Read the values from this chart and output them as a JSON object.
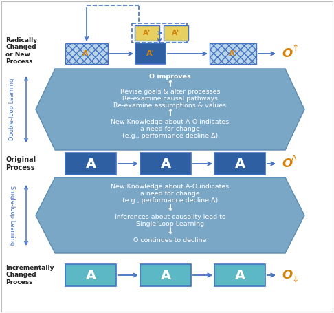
{
  "bg_color": "#ffffff",
  "blue_dark": "#2E5FA3",
  "blue_mid": "#5B9BD5",
  "blue_hex": "#7BA7C7",
  "blue_arrow": "#4472C4",
  "teal": "#5BB8C4",
  "hatched_fc": "#B8D4E8",
  "yellow": "#E8D060",
  "text_orange": "#D4820A",
  "text_white": "#ffffff",
  "text_dark": "#222222",
  "text_blue": "#4472C4",
  "label_radically": "Radically\nChanged\nor New\nProcess",
  "label_original": "Original\nProcess",
  "label_incrementally": "Incrementally\nChanged\nProcess",
  "label_double_loop": "Double-loop Learning",
  "label_single_loop": "Single-loop Learning",
  "upper_hex_lines": [
    "O improves",
    "↑",
    "Revise goals & alter processes",
    "Re-examine causal pathways",
    "Re-examine assumptions & values",
    "↑",
    "New Knowledge about A-O indicates",
    "a need for change",
    "(e.g., performance decline Δ)"
  ],
  "lower_hex_lines": [
    "New Knowledge about A-O indicates",
    "a need for change",
    "(e.g., performance decline Δ)",
    "↓",
    "Inferences about causality lead to",
    "Single Loop Learning",
    "↓",
    "O continues to decline"
  ]
}
